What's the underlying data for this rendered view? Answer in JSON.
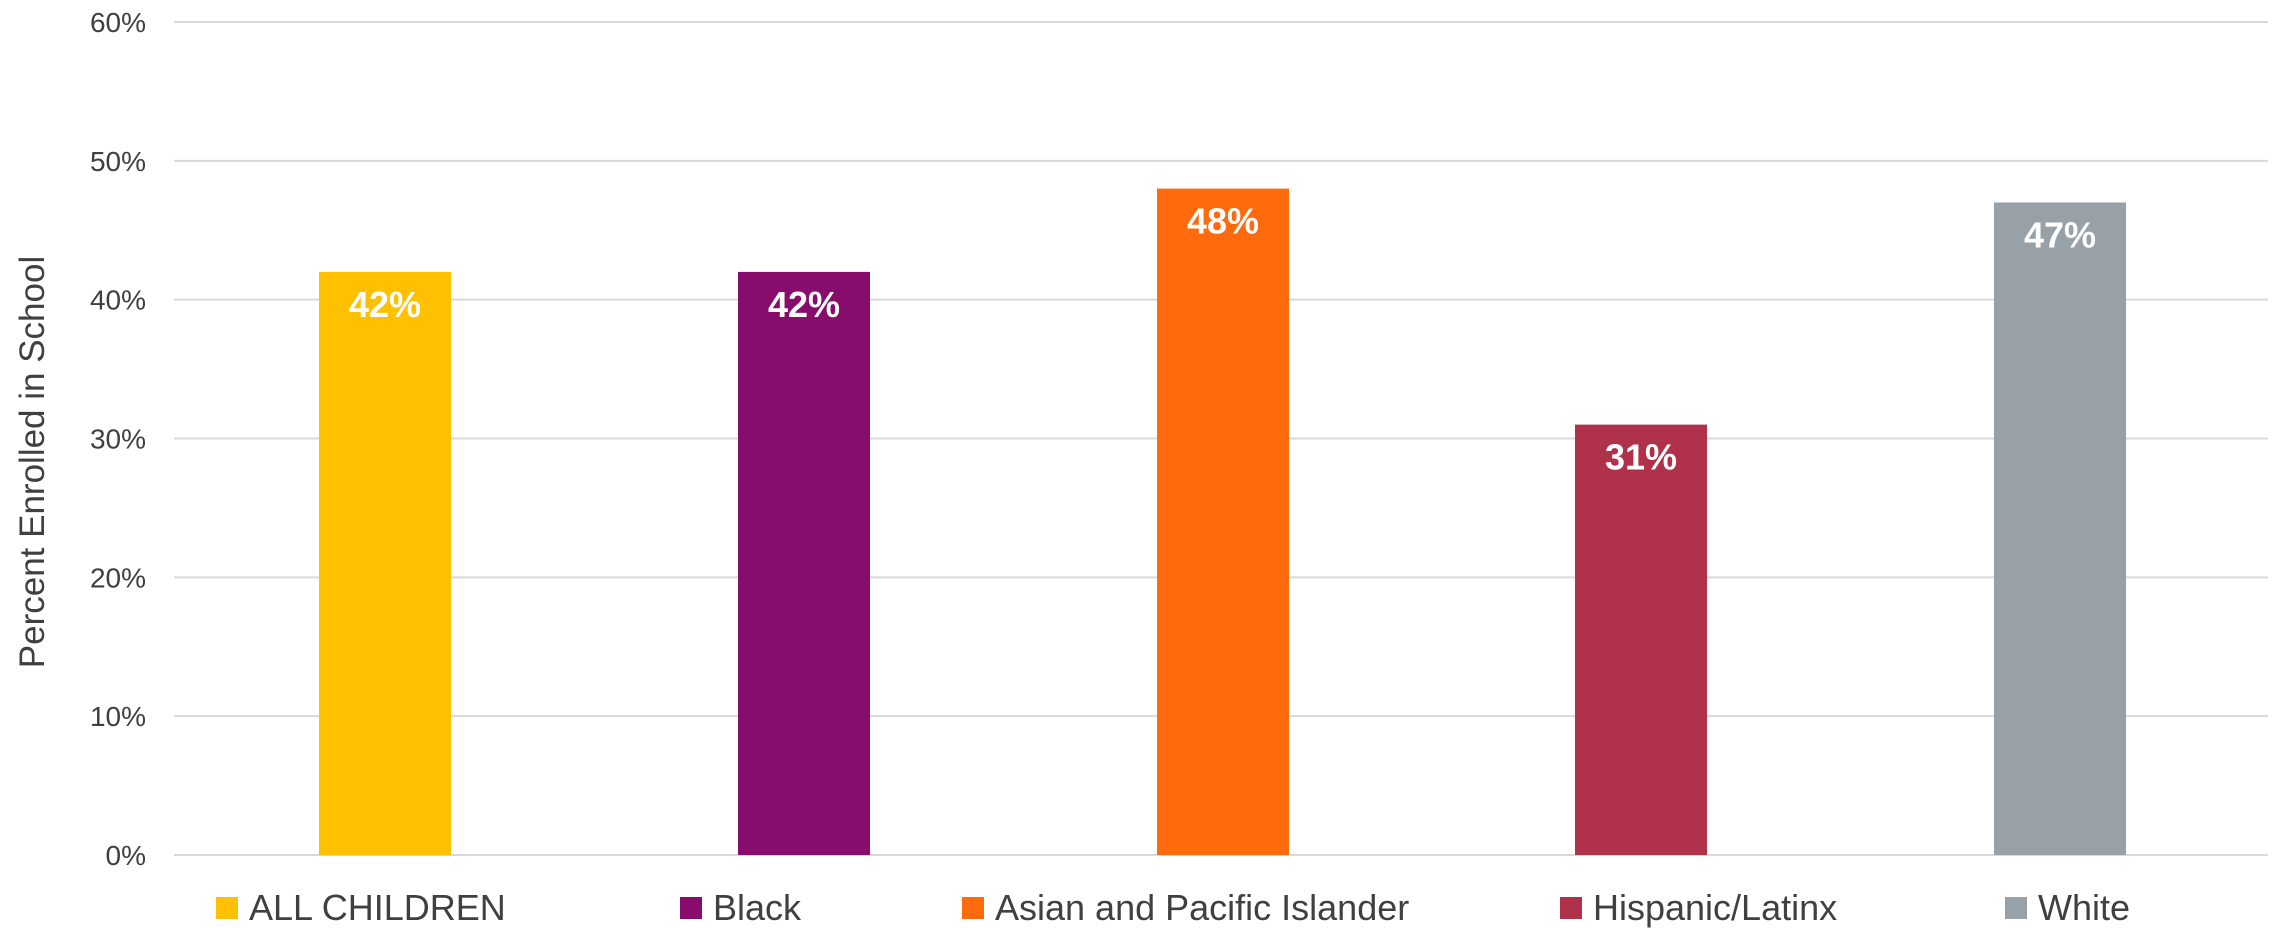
{
  "chart_data": {
    "type": "bar",
    "title": "",
    "xlabel": "",
    "ylabel": "Percent Enrolled in School",
    "ylim": [
      0,
      60
    ],
    "yticks": [
      "0%",
      "10%",
      "20%",
      "30%",
      "40%",
      "50%",
      "60%"
    ],
    "grid": true,
    "legend_position": "bottom",
    "categories": [
      "ALL CHILDREN",
      "Black",
      "Asian and Pacific Islander",
      "Hispanic/Latinx",
      "White"
    ],
    "values": [
      42,
      42,
      48,
      31,
      47
    ],
    "data_labels": [
      "42%",
      "42%",
      "48%",
      "31%",
      "47%"
    ],
    "colors": [
      "#ffc000",
      "#870c6b",
      "#ff6a0d",
      "#b0324a",
      "#98a0a8"
    ]
  }
}
